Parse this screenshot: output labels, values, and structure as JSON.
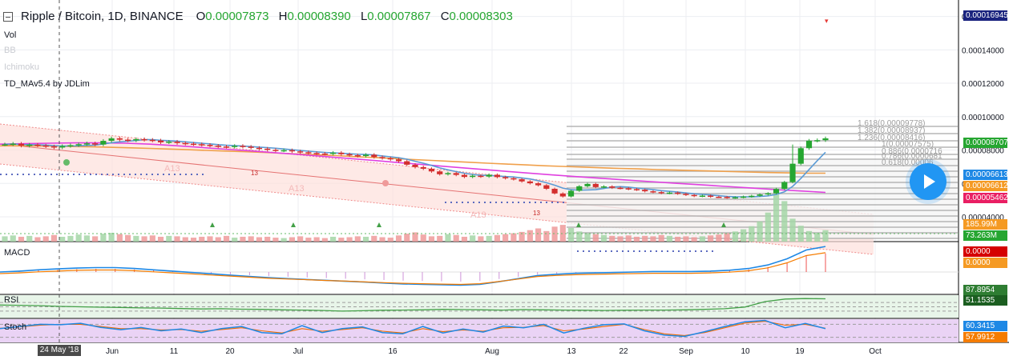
{
  "header": {
    "title": "Ripple / Bitcoin, 1D, BINANCE",
    "open_label": "O",
    "open": "0.00007873",
    "high_label": "H",
    "high": "0.00008390",
    "low_label": "L",
    "low": "0.00007867",
    "close_label": "C",
    "close": "0.00008303"
  },
  "indicators": [
    "Vol",
    "BB",
    "Ichimoku",
    "TD_MAv5.4 by JDLim"
  ],
  "panes": {
    "macd": "MACD",
    "rsi": "RSI",
    "stoch": "Stoch"
  },
  "price_axis": [
    "0.00016000",
    "0.00014000",
    "0.00012000",
    "0.00010000",
    "0.00008000",
    "0.00006000",
    "0.00004000"
  ],
  "price_tags": {
    "top": "0.00016945",
    "last": "0.00008707",
    "green1": "0.00006613",
    "orange": "0.00006612",
    "magenta": "0.00005462",
    "vol_orange": "185.99M",
    "vol_green": "73.263M",
    "macd_red": "0.0000",
    "macd_orange": "0.0000",
    "rsi_top": "87.8954",
    "rsi": "51.1535",
    "stoch_blue": "60.3415",
    "stoch_orange": "57.9912"
  },
  "fib_levels": [
    "1.618(0.00009778)",
    "1.382(0.00008937)",
    "1.236(0.00008416)",
    "1(0.00007575)",
    "0.886(0.0000716",
    "0.786(0.0000681",
    "0.618(0.00006"
  ],
  "td_labels": {
    "a13_1": "A13",
    "a13_2": "A13",
    "a13_3": "A13",
    "n13_1": "13",
    "n13_2": "13"
  },
  "time_axis": [
    "Jun",
    "11",
    "20",
    "Jul",
    "16",
    "Aug",
    "13",
    "22",
    "Sep",
    "10",
    "19",
    "Oct"
  ],
  "cursor_date": "24 May '18",
  "chart_data": {
    "type": "candlestick",
    "title": "Ripple / Bitcoin, 1D, BINANCE",
    "ylim": [
      3.2e-05,
      0.00017
    ],
    "close_series": [
      8.34e-05,
      8.38e-05,
      8.26e-05,
      8.32e-05,
      8.27e-05,
      8.22e-05,
      8.15e-05,
      8.24e-05,
      8.29e-05,
      8.35e-05,
      8.4e-05,
      8.33e-05,
      8.55e-05,
      8.7e-05,
      8.62e-05,
      8.58e-05,
      8.65e-05,
      8.61e-05,
      8.57e-05,
      8.46e-05,
      8.5e-05,
      8.42e-05,
      8.38e-05,
      8.35e-05,
      8.31e-05,
      8.26e-05,
      8.21e-05,
      8.19e-05,
      8.25e-05,
      8.2e-05,
      8.13e-05,
      8.08e-05,
      8.01e-05,
      7.97e-05,
      7.99e-05,
      7.92e-05,
      7.87e-05,
      7.82e-05,
      7.79e-05,
      7.77e-05,
      7.84e-05,
      7.75e-05,
      7.69e-05,
      7.64e-05,
      7.72e-05,
      7.58e-05,
      7.51e-05,
      7.44e-05,
      7.33e-05,
      7.12e-05,
      6.98e-05,
      6.88e-05,
      6.72e-05,
      6.55e-05,
      6.62e-05,
      6.51e-05,
      6.39e-05,
      6.46e-05,
      6.41e-05,
      6.52e-05,
      6.38e-05,
      6.31e-05,
      6.25e-05,
      6.12e-05,
      6.01e-05,
      5.89e-05,
      5.68e-05,
      5.4e-05,
      5.22e-05,
      5.56e-05,
      5.83e-05,
      5.97e-05,
      5.78e-05,
      5.82e-05,
      5.74e-05,
      5.71e-05,
      5.66e-05,
      5.62e-05,
      5.53e-05,
      5.48e-05,
      5.42e-05,
      5.45e-05,
      5.38e-05,
      5.31e-05,
      5.24e-05,
      5.27e-05,
      5.2e-05,
      5.19e-05,
      5.14e-05,
      5.17e-05,
      5.21e-05,
      5.26e-05,
      5.34e-05,
      5.41e-05,
      5.67e-05,
      6.08e-05,
      7.18e-05,
      8.11e-05,
      8.56e-05,
      8.59e-05,
      8.7e-05
    ],
    "moving_averages": [
      {
        "color": "#f0a04b",
        "values": [
          8.25e-05,
          8.25e-05,
          8.24e-05,
          8.23e-05,
          8.21e-05,
          8.19e-05,
          8.16e-05,
          8.13e-05,
          8.1e-05,
          8.06e-05,
          8.02e-05,
          7.98e-05,
          7.94e-05,
          7.9e-05,
          7.86e-05,
          7.81e-05,
          7.76e-05,
          7.71e-05,
          7.66e-05,
          7.6e-05,
          7.55e-05,
          7.49e-05,
          7.43e-05,
          7.38e-05,
          7.32e-05,
          7.27e-05,
          7.21e-05,
          7.16e-05,
          7.11e-05,
          7.06e-05,
          7.02e-05,
          6.98e-05,
          6.94e-05,
          6.9e-05,
          6.87e-05,
          6.83e-05,
          6.8e-05,
          6.77e-05,
          6.74e-05,
          6.71e-05,
          6.68e-05,
          6.65e-05,
          6.63e-05,
          6.61e-05,
          6.61e-05
        ]
      },
      {
        "color": "#e040e0",
        "values": [
          8.35e-05,
          8.38e-05,
          8.41e-05,
          8.43e-05,
          8.43e-05,
          8.41e-05,
          8.35e-05,
          8.26e-05,
          8.16e-05,
          8.05e-05,
          7.95e-05,
          7.84e-05,
          7.73e-05,
          7.61e-05,
          7.49e-05,
          7.37e-05,
          7.24e-05,
          7.12e-05,
          6.99e-05,
          6.87e-05,
          6.75e-05,
          6.63e-05,
          6.52e-05,
          6.41e-05,
          6.31e-05,
          6.21e-05,
          6.11e-05,
          6.01e-05,
          5.92e-05,
          5.82e-05,
          5.73e-05,
          5.63e-05,
          5.55e-05,
          5.46e-05
        ]
      }
    ],
    "volume": [
      12,
      14,
      11,
      13,
      10,
      12,
      15,
      11,
      13,
      16,
      14,
      12,
      18,
      20,
      17,
      15,
      13,
      12,
      14,
      11,
      13,
      12,
      10,
      9,
      11,
      12,
      10,
      13,
      9,
      11,
      12,
      10,
      11,
      9,
      8,
      10,
      12,
      9,
      10,
      8,
      11,
      9,
      10,
      12,
      11,
      13,
      10,
      9,
      14,
      18,
      21,
      16,
      12,
      13,
      17,
      15,
      11,
      14,
      12,
      13,
      15,
      17,
      19,
      22,
      26,
      30,
      24,
      34,
      38,
      31,
      23,
      19,
      17,
      15,
      13,
      12,
      14,
      11,
      13,
      12,
      15,
      13,
      11,
      12,
      10,
      12,
      14,
      16,
      19,
      23,
      28,
      35,
      46,
      66,
      118,
      92,
      52,
      36,
      24,
      20,
      26
    ],
    "macd_line": [
      0,
      2,
      5,
      7,
      9,
      10,
      10,
      8,
      5,
      2,
      -1,
      -4,
      -7,
      -10,
      -13,
      -15,
      -17,
      -19,
      -21,
      -23,
      -25,
      -27,
      -28,
      -29,
      -30,
      -28,
      -22,
      -15,
      -8,
      -5,
      -3,
      -2,
      -1,
      0,
      1,
      1,
      1,
      2,
      4,
      8,
      16,
      30,
      50,
      58
    ],
    "rsi_line": [
      58,
      57,
      55,
      52,
      50,
      48,
      47,
      45,
      44,
      42,
      40,
      41,
      39,
      38,
      36,
      35,
      33,
      30,
      32,
      34,
      35,
      36,
      38,
      37,
      36,
      35,
      37,
      36,
      35,
      34,
      33,
      34,
      35,
      35,
      36,
      38,
      41,
      49,
      74,
      86,
      88,
      87
    ],
    "stoch_k": [
      60,
      70,
      80,
      78,
      85,
      66,
      55,
      65,
      50,
      58,
      42,
      60,
      70,
      42,
      36,
      74,
      42,
      60,
      68,
      42,
      36,
      70,
      40,
      58,
      44,
      72,
      64,
      80,
      40,
      62,
      78,
      82,
      50,
      30,
      24,
      46,
      70,
      92,
      98,
      64,
      84,
      60
    ],
    "stoch_d": [
      62,
      68,
      76,
      80,
      80,
      70,
      60,
      60,
      54,
      56,
      48,
      56,
      64,
      50,
      40,
      60,
      48,
      56,
      64,
      48,
      40,
      60,
      46,
      54,
      48,
      64,
      66,
      74,
      50,
      58,
      70,
      80,
      56,
      36,
      28,
      42,
      64,
      86,
      94,
      76,
      80,
      62
    ]
  }
}
